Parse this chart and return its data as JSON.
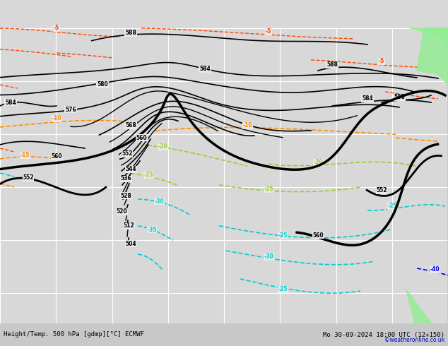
{
  "title_bottom": "Height/Temp. 500 hPa [gdmp][°C] ECMWF",
  "title_right": "Mo 30-09-2024 18:00 UTC (12+150)",
  "credit": "©weatheronline.co.uk",
  "background_color": "#d8d8d8",
  "map_bg": "#e8e8e8",
  "grid_color": "#ffffff",
  "figsize": [
    6.34,
    4.9
  ],
  "dpi": 100,
  "xlim": [
    0,
    634
  ],
  "ylim": [
    0,
    490
  ],
  "bottom_bar_color": "#c8c8c8",
  "z500_color": "#000000",
  "z500_thick_color": "#000000",
  "temp_negative_color_warm": "#ff4500",
  "temp_orange_color": "#ff8c00",
  "temp_yellow_green_color": "#9acd32",
  "temp_cyan_color": "#00ced1",
  "temp_blue_color": "#0000ff",
  "slp_label_color": "#000000",
  "right_land_color": "#90ee90",
  "bottom_text_color": "#000000",
  "credit_color": "#0000cd"
}
